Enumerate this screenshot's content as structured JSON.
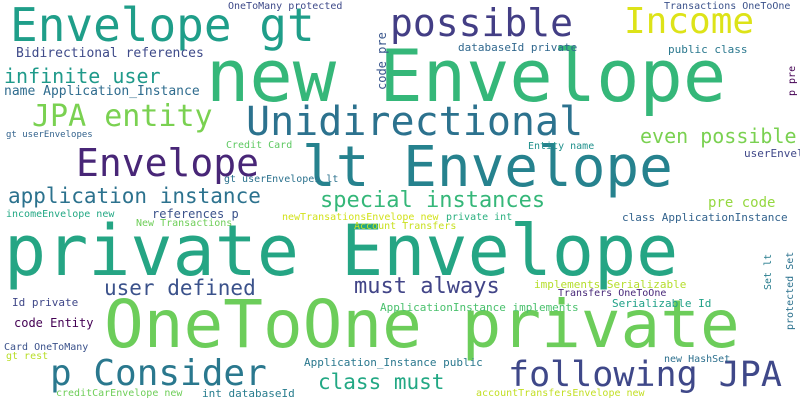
{
  "words": [
    {
      "text": "private Envelope",
      "color": "#25a584"
    },
    {
      "text": "new Envelope",
      "color": "#35b779"
    },
    {
      "text": "OneToOne private",
      "color": "#6ccd5a"
    },
    {
      "text": "Envelope gt",
      "color": "#1f9e89"
    },
    {
      "text": "lt Envelope",
      "color": "#26828e"
    },
    {
      "text": "Unidirectional",
      "color": "#2c728e"
    },
    {
      "text": "Envelope",
      "color": "#482677"
    },
    {
      "text": "p Consider",
      "color": "#2a788e"
    },
    {
      "text": "following JPA",
      "color": "#3f4889"
    },
    {
      "text": "possible",
      "color": "#433e85"
    },
    {
      "text": "Income",
      "color": "#dde318"
    },
    {
      "text": "JPA entity",
      "color": "#7ad151"
    },
    {
      "text": "application instance",
      "color": "#2c728e"
    },
    {
      "text": "special instances",
      "color": "#35b779"
    },
    {
      "text": "user defined",
      "color": "#3b528b"
    },
    {
      "text": "must always",
      "color": "#414487"
    },
    {
      "text": "class must",
      "color": "#22a884"
    },
    {
      "text": "even possible",
      "color": "#7ad151"
    },
    {
      "text": "infinite user",
      "color": "#1f9a8a"
    },
    {
      "text": "Bidirectional references",
      "color": "#3e4a89"
    },
    {
      "text": "name Application_Instance",
      "color": "#2f6c8e"
    },
    {
      "text": "databaseId private",
      "color": "#31688e"
    },
    {
      "text": "public class",
      "color": "#2a788e"
    },
    {
      "text": "references p",
      "color": "#3b528b"
    },
    {
      "text": "pre code",
      "color": "#95d840"
    },
    {
      "text": "class ApplicationInstance",
      "color": "#33638d"
    },
    {
      "text": "code Entity",
      "color": "#440154"
    },
    {
      "text": "implements Serializable",
      "color": "#b5de2b"
    },
    {
      "text": "Transfers OneToOne",
      "color": "#482878"
    },
    {
      "text": "Serializable Id",
      "color": "#1fa187"
    },
    {
      "text": "ApplicationInstance implements",
      "color": "#4ac16d"
    },
    {
      "text": "Id private",
      "color": "#3f4788"
    },
    {
      "text": "Application_Instance public",
      "color": "#2a788e"
    },
    {
      "text": "new HashSet",
      "color": "#2d708e"
    },
    {
      "text": "Card OneToMany",
      "color": "#3b528b"
    },
    {
      "text": "gt rest",
      "color": "#b8de29"
    },
    {
      "text": "creditCarEnvelope new",
      "color": "#6ece58"
    },
    {
      "text": "int databaseId",
      "color": "#287d8e"
    },
    {
      "text": "accountTransfersEnvelope new",
      "color": "#c2df23"
    },
    {
      "text": "OneToMany protected",
      "color": "#3e4a89"
    },
    {
      "text": "Transactions OneToOne",
      "color": "#3b528b"
    },
    {
      "text": "Entity name",
      "color": "#21918c"
    },
    {
      "text": "Credit Card",
      "color": "#5ec962"
    },
    {
      "text": "gt userEnvelopes",
      "color": "#33638d"
    },
    {
      "text": "incomeEnvelope new",
      "color": "#22a884"
    },
    {
      "text": "newTransationsEnvelope new",
      "color": "#d2e21b"
    },
    {
      "text": "private int",
      "color": "#2ab07f"
    },
    {
      "text": "New Transactions",
      "color": "#6ece58"
    },
    {
      "text": "Account Transfers",
      "color": "#c8e020"
    },
    {
      "text": "userEnvelopes new",
      "color": "#3f4788"
    },
    {
      "text": "code pre",
      "color": "#39568c"
    },
    {
      "text": "p pre",
      "color": "#440154"
    },
    {
      "text": "Set lt",
      "color": "#287d8e"
    },
    {
      "text": "protected Set",
      "color": "#2c728e"
    },
    {
      "text": "gt userEnvelopes lt",
      "color": "#2c728e"
    }
  ]
}
